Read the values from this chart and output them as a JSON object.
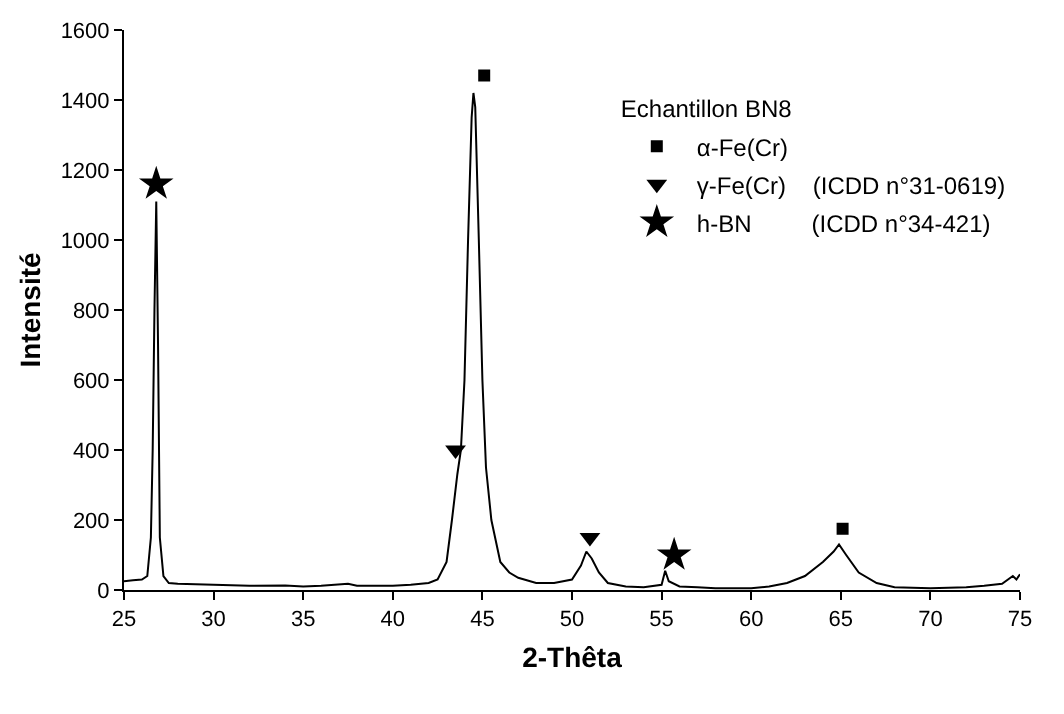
{
  "chart_data": {
    "type": "line",
    "xlabel": "2-Thêta",
    "ylabel": "Intensité",
    "legend_title": "Echantillon BN8",
    "xlim": [
      25,
      75
    ],
    "xticks": [
      25,
      30,
      35,
      40,
      45,
      50,
      55,
      60,
      65,
      70,
      75
    ],
    "ylim": [
      0,
      1600
    ],
    "yticks": [
      0,
      200,
      400,
      600,
      800,
      1000,
      1200,
      1400,
      1600
    ],
    "legend": "top right",
    "series": [
      {
        "color": "#000000",
        "marker": "none",
        "x": [
          25,
          25.5,
          26,
          26.3,
          26.5,
          26.6,
          26.7,
          26.8,
          26.9,
          27.0,
          27.2,
          27.5,
          28,
          30,
          32,
          34,
          35,
          36,
          37.5,
          38,
          40,
          41,
          42,
          42.5,
          43,
          43.3,
          43.6,
          43.8,
          44.0,
          44.2,
          44.4,
          44.5,
          44.6,
          44.8,
          45.0,
          45.2,
          45.5,
          46,
          46.5,
          47,
          48,
          49,
          50,
          50.5,
          50.8,
          51.1,
          51.5,
          52,
          53,
          54,
          55,
          55.2,
          55.4,
          56,
          57,
          58,
          60,
          61,
          62,
          63,
          64,
          64.6,
          64.9,
          65.3,
          66,
          67,
          68,
          70,
          72,
          73,
          74,
          74.6,
          74.8,
          75
        ],
        "values": [
          25,
          28,
          30,
          40,
          150,
          400,
          800,
          1110,
          700,
          150,
          40,
          20,
          18,
          15,
          12,
          13,
          10,
          12,
          18,
          12,
          12,
          15,
          20,
          30,
          80,
          200,
          330,
          400,
          600,
          1000,
          1350,
          1420,
          1380,
          1000,
          600,
          350,
          200,
          80,
          50,
          35,
          20,
          20,
          30,
          70,
          110,
          90,
          50,
          20,
          10,
          8,
          15,
          55,
          25,
          10,
          8,
          5,
          5,
          10,
          20,
          40,
          80,
          110,
          130,
          100,
          50,
          20,
          8,
          5,
          8,
          12,
          18,
          40,
          30,
          45
        ]
      },
      {
        "type": "scatter",
        "name": "α-Fe(Cr)",
        "color": "#000000",
        "marker": "square",
        "x": [
          45.1,
          65.1
        ],
        "values": [
          1470,
          175
        ]
      },
      {
        "type": "scatter",
        "name": "γ-Fe(Cr)    (ICDD n°31-0619)",
        "color": "#000000",
        "marker": "triangle",
        "x": [
          43.5,
          51.0
        ],
        "values": [
          400,
          150
        ]
      },
      {
        "type": "scatter",
        "name": "h-BN         (ICDD n°34-421)",
        "color": "#000000",
        "marker": "star",
        "x": [
          26.8,
          55.7
        ],
        "values": [
          1160,
          100
        ]
      }
    ]
  }
}
